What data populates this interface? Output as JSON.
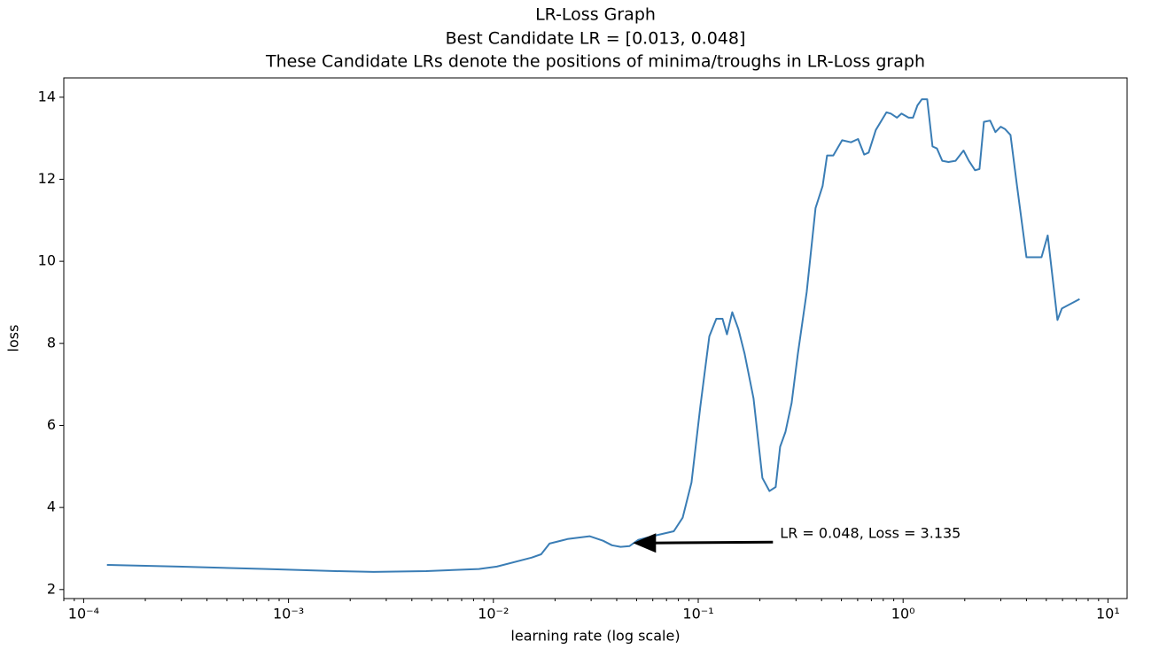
{
  "chart_data": {
    "type": "line",
    "title": "LR-Loss Graph",
    "subtitle": [
      "Best Candidate LR = [0.013, 0.048]",
      "These Candidate LRs denote the positions of minima/troughs in LR-Loss graph"
    ],
    "xlabel": "learning rate (log scale)",
    "ylabel": "loss",
    "xscale": "log",
    "xlim": [
      8e-05,
      12.4
    ],
    "ylim": [
      1.78,
      14.47
    ],
    "xticks": [
      {
        "value": 0.0001,
        "label": "10⁻⁴"
      },
      {
        "value": 0.001,
        "label": "10⁻³"
      },
      {
        "value": 0.01,
        "label": "10⁻²"
      },
      {
        "value": 0.1,
        "label": "10⁻¹"
      },
      {
        "value": 1,
        "label": "10⁰"
      },
      {
        "value": 10,
        "label": "10¹"
      }
    ],
    "yticks": [
      2,
      4,
      6,
      8,
      10,
      12,
      14
    ],
    "x": [
      0.00013,
      0.00029,
      0.00078,
      0.0017,
      0.0026,
      0.0047,
      0.0085,
      0.0104,
      0.0154,
      0.0171,
      0.0188,
      0.023,
      0.0295,
      0.0343,
      0.0379,
      0.0418,
      0.0462,
      0.051,
      0.0622,
      0.076,
      0.0839,
      0.0927,
      0.1023,
      0.1132,
      0.1225,
      0.1314,
      0.1381,
      0.1466,
      0.157,
      0.1685,
      0.1862,
      0.2056,
      0.2228,
      0.2387,
      0.251,
      0.2664,
      0.2857,
      0.3063,
      0.3384,
      0.3738,
      0.4048,
      0.4256,
      0.456,
      0.5039,
      0.5567,
      0.603,
      0.646,
      0.679,
      0.736,
      0.829,
      0.872,
      0.934,
      0.982,
      1.064,
      1.118,
      1.175,
      1.235,
      1.311,
      1.392,
      1.463,
      1.553,
      1.665,
      1.803,
      1.972,
      2.094,
      2.245,
      2.359,
      2.48,
      2.659,
      2.822,
      2.996,
      3.15,
      3.344,
      3.585,
      4.0,
      4.738,
      5.08,
      5.669,
      5.957,
      7.271
    ],
    "series": [
      {
        "color": "#3a7db5",
        "values": [
          2.6,
          2.56,
          2.5,
          2.45,
          2.43,
          2.45,
          2.5,
          2.56,
          2.78,
          2.86,
          3.12,
          3.23,
          3.3,
          3.19,
          3.08,
          3.04,
          3.06,
          3.21,
          3.32,
          3.42,
          3.75,
          4.61,
          6.45,
          8.17,
          8.6,
          8.6,
          8.22,
          8.76,
          8.35,
          7.74,
          6.66,
          4.72,
          4.4,
          4.5,
          5.48,
          5.84,
          6.55,
          7.74,
          9.25,
          11.3,
          11.84,
          12.58,
          12.58,
          12.95,
          12.9,
          12.98,
          12.6,
          12.65,
          13.2,
          13.63,
          13.6,
          13.5,
          13.6,
          13.5,
          13.5,
          13.8,
          13.95,
          13.95,
          12.8,
          12.75,
          12.45,
          12.42,
          12.45,
          12.7,
          12.45,
          12.22,
          12.25,
          13.4,
          13.43,
          13.15,
          13.28,
          13.22,
          13.08,
          11.9,
          10.1,
          10.1,
          10.63,
          8.57,
          8.85,
          9.08
        ]
      }
    ],
    "annotations": [
      {
        "text": "LR = 0.048, Loss = 3.135",
        "x": 0.048,
        "y": 3.135
      }
    ]
  }
}
